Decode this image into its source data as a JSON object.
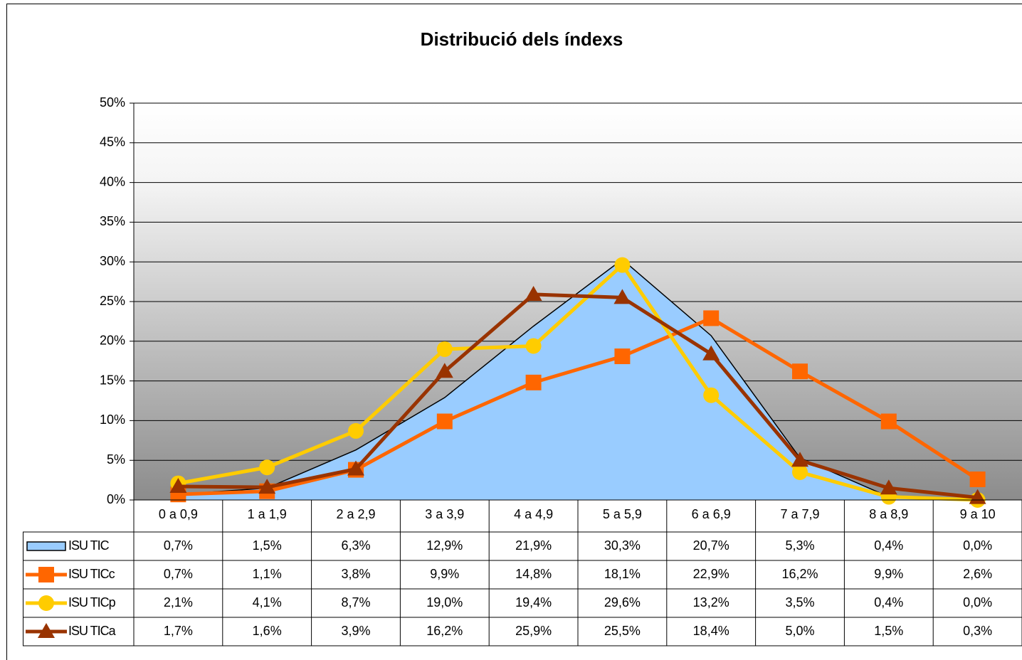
{
  "chart_data": {
    "type": "line",
    "title": "Distribució dels índexs",
    "categories": [
      "0 a 0,9",
      "1 a 1,9",
      "2 a 2,9",
      "3 a 3,9",
      "4 a 4,9",
      "5 a 5,9",
      "6 a 6,9",
      "7 a 7,9",
      "8 a 8,9",
      "9 a 10"
    ],
    "series": [
      {
        "name": "ISU TIC",
        "kind": "area",
        "color": "#99ccff",
        "values": [
          0.7,
          1.5,
          6.3,
          12.9,
          21.9,
          30.3,
          20.7,
          5.3,
          0.4,
          0.0
        ],
        "value_labels": [
          "0,7%",
          "1,5%",
          "6,3%",
          "12,9%",
          "21,9%",
          "30,3%",
          "20,7%",
          "5,3%",
          "0,4%",
          "0,0%"
        ]
      },
      {
        "name": "ISU TICc",
        "marker": "square",
        "color": "#ff6600",
        "values": [
          0.7,
          1.1,
          3.8,
          9.9,
          14.8,
          18.1,
          22.9,
          16.2,
          9.9,
          2.6
        ],
        "value_labels": [
          "0,7%",
          "1,1%",
          "3,8%",
          "9,9%",
          "14,8%",
          "18,1%",
          "22,9%",
          "16,2%",
          "9,9%",
          "2,6%"
        ]
      },
      {
        "name": "ISU TICp",
        "marker": "circle",
        "color": "#ffcc00",
        "values": [
          2.1,
          4.1,
          8.7,
          19.0,
          19.4,
          29.6,
          13.2,
          3.5,
          0.4,
          0.0
        ],
        "value_labels": [
          "2,1%",
          "4,1%",
          "8,7%",
          "19,0%",
          "19,4%",
          "29,6%",
          "13,2%",
          "3,5%",
          "0,4%",
          "0,0%"
        ]
      },
      {
        "name": "ISU TICa",
        "marker": "triangle",
        "color": "#993300",
        "values": [
          1.7,
          1.6,
          3.9,
          16.2,
          25.9,
          25.5,
          18.4,
          5.0,
          1.5,
          0.3
        ],
        "value_labels": [
          "1,7%",
          "1,6%",
          "3,9%",
          "16,2%",
          "25,9%",
          "25,5%",
          "18,4%",
          "5,0%",
          "1,5%",
          "0,3%"
        ]
      }
    ],
    "ylim": [
      0,
      50
    ],
    "yticks": [
      {
        "value": 0,
        "label": "0%"
      },
      {
        "value": 5,
        "label": "5%"
      },
      {
        "value": 10,
        "label": "10%"
      },
      {
        "value": 15,
        "label": "15%"
      },
      {
        "value": 20,
        "label": "20%"
      },
      {
        "value": 25,
        "label": "25%"
      },
      {
        "value": 30,
        "label": "30%"
      },
      {
        "value": 35,
        "label": "35%"
      },
      {
        "value": 40,
        "label": "40%"
      },
      {
        "value": 45,
        "label": "45%"
      },
      {
        "value": 50,
        "label": "50%"
      }
    ],
    "grid": true,
    "legend": "data-table"
  }
}
